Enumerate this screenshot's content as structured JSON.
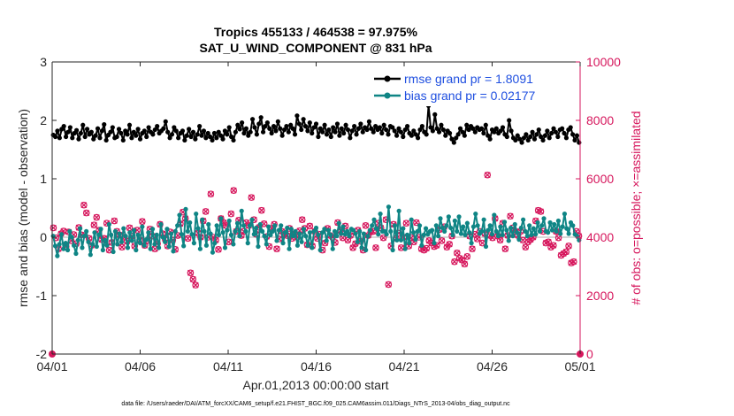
{
  "chart_data": {
    "type": "line",
    "title_line1": "Tropics 455133 / 464538 = 97.975%",
    "title_line2": "SAT_U_WIND_COMPONENT @ 831 hPa",
    "xlabel": "Apr.01,2013 00:00:00 start",
    "ylabel_left": "rmse and bias (model - observation)",
    "ylabel_right": "# of obs: o=possible; ×=assimilated",
    "footer": "data file: /Users/raeder/DAI/ATM_forcXX/CAM6_setup/f.e21.FHIST_BGC.f09_025.CAM6assim.011/Diags_NTrS_2013-04/obs_diag_output.nc",
    "xlim": [
      0,
      30
    ],
    "ylim_left": [
      -2,
      3
    ],
    "ylim_right": [
      0,
      10000
    ],
    "x_ticks": [
      0,
      5,
      10,
      15,
      20,
      25,
      30
    ],
    "x_tick_labels": [
      "04/01",
      "04/06",
      "04/11",
      "04/16",
      "04/21",
      "04/26",
      "05/01"
    ],
    "yticks_left": [
      -2,
      -1,
      0,
      1,
      2,
      3
    ],
    "yticks_left_labels": [
      "-2",
      "-1",
      "0",
      "1",
      "2",
      "3"
    ],
    "yticks_right": [
      0,
      2000,
      4000,
      6000,
      8000,
      10000
    ],
    "yticks_right_labels": [
      "0",
      "2000",
      "4000",
      "6000",
      "8000",
      "10000"
    ],
    "legend_position": "top-right",
    "colors": {
      "rmse": "#000000",
      "bias": "#0f8585",
      "obs": "#d6165c",
      "axis": "#262626",
      "zero": "#bfbfbf"
    },
    "series": [
      {
        "name": "rmse grand pr = 1.8091",
        "key": "rmse",
        "values": [
          1.75,
          1.72,
          1.82,
          1.7,
          1.85,
          1.9,
          1.72,
          1.8,
          1.88,
          1.7,
          1.78,
          1.83,
          1.68,
          1.78,
          1.92,
          1.72,
          1.85,
          1.76,
          1.8,
          1.68,
          1.74,
          1.86,
          1.7,
          1.82,
          1.93,
          1.66,
          1.75,
          1.8,
          1.88,
          1.7,
          1.72,
          1.85,
          1.78,
          1.66,
          1.82,
          1.76,
          1.92,
          1.7,
          1.8,
          1.74,
          1.85,
          1.68,
          1.78,
          1.82,
          1.72,
          1.88,
          1.8,
          1.76,
          1.84,
          1.9,
          1.78,
          1.82,
          1.86,
          1.98,
          1.8,
          1.7,
          1.76,
          1.88,
          1.82,
          1.7,
          1.78,
          1.82,
          1.66,
          1.74,
          1.85,
          1.72,
          1.8,
          1.68,
          1.76,
          1.9,
          1.74,
          1.82,
          1.7,
          1.78,
          1.72,
          1.66,
          1.78,
          1.7,
          1.8,
          1.74,
          1.68,
          1.82,
          1.76,
          1.88,
          1.72,
          1.66,
          1.8,
          1.92,
          1.85,
          1.96,
          1.78,
          1.86,
          1.74,
          1.8,
          2.02,
          1.88,
          1.76,
          1.94,
          2.05,
          1.8,
          1.9,
          1.96,
          1.86,
          1.78,
          1.9,
          1.82,
          1.98,
          1.86,
          1.74,
          1.84,
          1.9,
          1.8,
          1.92,
          1.86,
          1.76,
          2.08,
          1.94,
          1.84,
          2.02,
          1.9,
          1.82,
          1.96,
          1.78,
          1.88,
          1.94,
          1.72,
          1.86,
          1.8,
          1.92,
          1.76,
          1.84,
          1.72,
          1.88,
          1.8,
          1.94,
          1.74,
          1.86,
          1.78,
          1.92,
          1.84,
          1.7,
          1.82,
          1.9,
          1.76,
          1.86,
          1.94,
          1.8,
          1.88,
          1.84,
          1.98,
          1.86,
          1.8,
          1.9,
          1.84,
          1.88,
          1.78,
          1.92,
          1.84,
          1.76,
          1.9,
          1.88,
          1.82,
          1.74,
          1.86,
          1.8,
          1.72,
          1.84,
          1.9,
          1.78,
          1.74,
          1.82,
          1.76,
          1.7,
          1.84,
          1.9,
          1.8,
          1.76,
          2.25,
          1.88,
          1.82,
          2.1,
          1.86,
          1.8,
          1.92,
          1.84,
          1.74,
          1.82,
          1.78,
          1.68,
          1.62,
          1.7,
          1.76,
          1.86,
          1.8,
          1.74,
          1.92,
          1.84,
          1.9,
          1.86,
          1.8,
          1.88,
          1.84,
          1.86,
          1.78,
          1.92,
          1.74,
          1.68,
          1.84,
          1.8,
          1.86,
          1.78,
          1.82,
          1.88,
          1.76,
          1.72,
          2.0,
          1.82,
          1.7,
          1.66,
          1.74,
          1.68,
          1.62,
          1.7,
          1.76,
          1.66,
          1.72,
          1.8,
          1.68,
          1.76,
          1.84,
          1.72,
          1.66,
          1.74,
          1.82,
          1.7,
          1.78,
          1.86,
          1.8,
          1.72,
          1.84,
          1.86,
          1.78,
          1.7,
          1.84,
          1.88,
          1.76,
          1.66,
          1.74,
          1.62
        ]
      },
      {
        "name": "bias grand pr = 0.02177",
        "key": "bias",
        "values": [
          0.02,
          -0.15,
          -0.32,
          -0.12,
          0.05,
          -0.2,
          -0.1,
          -0.22,
          0.1,
          0.0,
          -0.14,
          -0.28,
          -0.05,
          0.15,
          -0.18,
          0.02,
          0.1,
          -0.08,
          -0.3,
          -0.12,
          0.08,
          -0.16,
          0.04,
          0.14,
          -0.22,
          -0.05,
          -0.14,
          0.22,
          0.04,
          -0.25,
          0.1,
          -0.12,
          0.06,
          -0.08,
          0.15,
          0.02,
          -0.18,
          0.08,
          -0.06,
          0.12,
          -0.22,
          0.04,
          -0.1,
          0.18,
          -0.14,
          -0.04,
          0.08,
          -0.2,
          0.14,
          -0.12,
          0.04,
          -0.18,
          0.22,
          0.0,
          -0.08,
          0.14,
          -0.16,
          0.06,
          -0.24,
          0.1,
          0.2,
          0.38,
          0.05,
          -0.15,
          0.48,
          0.1,
          0.25,
          0.05,
          -0.1,
          0.4,
          0.15,
          -0.2,
          0.3,
          0.1,
          -0.14,
          0.22,
          0.06,
          -0.26,
          -0.1,
          0.2,
          0.04,
          0.32,
          0.08,
          -0.18,
          0.12,
          0.28,
          0.04,
          -0.12,
          0.1,
          0.24,
          0.02,
          0.45,
          0.2,
          0.1,
          -0.1,
          0.2,
          0.3,
          0.05,
          0.16,
          -0.16,
          0.22,
          0.1,
          0.02,
          -0.12,
          0.18,
          0.04,
          0.1,
          0.2,
          -0.06,
          0.12,
          0.2,
          -0.1,
          0.08,
          0.16,
          -0.2,
          0.14,
          0.02,
          0.1,
          -0.14,
          0.06,
          -0.08,
          0.14,
          0.02,
          -0.14,
          0.08,
          -0.18,
          0.1,
          0.16,
          0.04,
          -0.22,
          0.08,
          0.14,
          -0.06,
          0.12,
          0.04,
          -0.2,
          0.1,
          0.02,
          0.24,
          0.06,
          0.18,
          0.05,
          0.1,
          0.02,
          0.14,
          0.12,
          0.06,
          -0.08,
          0.1,
          -0.18,
          0.06,
          -0.22,
          0.02,
          0.12,
          0.2,
          0.3,
          0.15,
          0.05,
          0.4,
          0.1,
          0.1,
          0.05,
          0.52,
          0.1,
          -0.22,
          0.2,
          -0.05,
          0.45,
          -0.05,
          0.15,
          -0.2,
          0.04,
          -0.1,
          0.3,
          0.08,
          -0.04,
          0.1,
          0.2,
          -0.14,
          0.04,
          0.15,
          0.05,
          0.1,
          0.12,
          -0.1,
          0.2,
          0.02,
          0.32,
          0.16,
          0.1,
          0.2,
          0.35,
          0.16,
          0.04,
          0.28,
          0.1,
          0.35,
          0.06,
          0.18,
          0.04,
          0.24,
          0.08,
          -0.1,
          0.18,
          0.4,
          0.2,
          0.06,
          0.1,
          0.3,
          -0.16,
          0.12,
          0.2,
          0.05,
          0.38,
          0.1,
          0.02,
          0.18,
          0.04,
          0.26,
          0.12,
          -0.06,
          0.16,
          0.02,
          0.22,
          0.08,
          -0.04,
          0.16,
          0.3,
          0.1,
          0.02,
          0.2,
          0.04,
          0.15,
          0.05,
          0.25,
          0.1,
          0.2,
          0.32,
          0.1,
          0.08,
          0.25,
          0.12,
          0.22,
          0.1,
          0.28,
          0.06,
          0.18,
          0.4,
          0.15,
          0.06,
          0.25,
          0.2,
          0.05,
          0.02,
          -0.05
        ]
      }
    ],
    "obs_possible": [
      4320,
      3980,
      3600,
      4120,
      4210,
      3680,
      4180,
      3880,
      4090,
      3780,
      4330,
      4080,
      5100,
      4830,
      3960,
      3720,
      4420,
      4680,
      4240,
      3920,
      3960,
      4480,
      3560,
      3820,
      4560,
      4200,
      4080,
      3660,
      4000,
      3860,
      4320,
      4040,
      3700,
      4240,
      3900,
      4540,
      3720,
      3880,
      4280,
      4040,
      3600,
      3780,
      4440,
      4120,
      3940,
      3700,
      4180,
      3900,
      3580,
      4060,
      4460,
      4860,
      4640,
      3960,
      2780,
      2560,
      2360,
      4140,
      4000,
      4560,
      4880,
      4000,
      5480,
      4000,
      3900,
      3580,
      4640,
      4500,
      4400,
      3840,
      4800,
      5600,
      4200,
      4580,
      4060,
      4200,
      4500,
      4400,
      5360,
      4600,
      4100,
      4340,
      4920,
      4460,
      4020,
      3680,
      4300,
      4440,
      3600,
      3940,
      4200,
      4100,
      4060,
      4300,
      3960,
      4120,
      4000,
      4220,
      4600,
      4300,
      3740,
      4380,
      3700,
      4200,
      3960,
      4100,
      3560,
      3800,
      4300,
      4060,
      4000,
      3820,
      4500,
      4220,
      3980,
      4380,
      3900,
      4060,
      3640,
      3780,
      4240,
      3860,
      3560,
      4400,
      4060,
      4180,
      4200,
      3640,
      4480,
      4320,
      3980,
      4600,
      2380,
      3700,
      4440,
      3960,
      4140,
      3640,
      4000,
      4480,
      3700,
      3980,
      3840,
      4500,
      4000,
      3600,
      3560,
      3620,
      3880,
      3800,
      3680,
      3720,
      4260,
      3880,
      4360,
      3660,
      3760,
      4040,
      3160,
      3460,
      3280,
      3220,
      3080,
      3340,
      4040,
      3600,
      4100,
      3940,
      4200,
      3800,
      4120,
      6130,
      4060,
      3980,
      4640,
      4040,
      3900,
      4480,
      3600,
      4060,
      4720,
      4320,
      4200,
      4060,
      4200,
      3900,
      3660,
      3840,
      3920,
      4000,
      4560,
      4920,
      4880,
      4200,
      3800,
      3840,
      3660,
      3720,
      4200,
      3980,
      3380,
      3440,
      3500,
      3700,
      3120,
      3160,
      4200,
      4040
    ],
    "obs_assimilated": [
      4320,
      3980,
      3600,
      4120,
      4210,
      3680,
      4180,
      3880,
      4090,
      3780,
      4330,
      4080,
      5100,
      4830,
      3960,
      3720,
      4420,
      4680,
      4240,
      3920,
      3960,
      4480,
      3560,
      3820,
      4560,
      4200,
      4080,
      3660,
      4000,
      3860,
      4320,
      4040,
      3700,
      4240,
      3900,
      4540,
      3720,
      3880,
      4280,
      4040,
      3600,
      3780,
      4440,
      4120,
      3940,
      3700,
      4180,
      3900,
      3580,
      4060,
      4460,
      4860,
      4640,
      3960,
      2780,
      2560,
      2360,
      4140,
      4000,
      4560,
      4880,
      4000,
      5480,
      4000,
      3900,
      3580,
      4640,
      4500,
      4400,
      3840,
      4800,
      5600,
      4200,
      4580,
      4060,
      4200,
      4500,
      4400,
      5360,
      4600,
      4100,
      4340,
      4920,
      4460,
      4020,
      3680,
      4300,
      4440,
      3600,
      3940,
      4200,
      4100,
      4060,
      4300,
      3960,
      4120,
      4000,
      4220,
      4600,
      4300,
      3740,
      4380,
      3700,
      4200,
      3960,
      4100,
      3560,
      3800,
      4300,
      4060,
      4000,
      3820,
      4500,
      4220,
      3980,
      4380,
      3900,
      4060,
      3640,
      3780,
      4240,
      3860,
      3560,
      4400,
      4060,
      4180,
      4200,
      3640,
      4480,
      4320,
      3980,
      4600,
      2380,
      3700,
      4440,
      3960,
      4140,
      3640,
      4000,
      4480,
      3700,
      3980,
      3840,
      4500,
      4000,
      3600,
      3560,
      3620,
      3880,
      3800,
      3680,
      3720,
      4260,
      3880,
      4360,
      3660,
      3760,
      4040,
      3160,
      3460,
      3280,
      3220,
      3080,
      3340,
      4040,
      3600,
      4100,
      3940,
      4200,
      3800,
      4120,
      6130,
      4060,
      3980,
      4640,
      4040,
      3900,
      4480,
      3600,
      4060,
      4720,
      4320,
      4200,
      4060,
      4200,
      3900,
      3660,
      3840,
      3920,
      4000,
      4560,
      4920,
      4880,
      4200,
      3800,
      3840,
      3660,
      3720,
      4200,
      3980,
      3380,
      3440,
      3500,
      3700,
      3120,
      3160,
      4200,
      4040
    ]
  }
}
